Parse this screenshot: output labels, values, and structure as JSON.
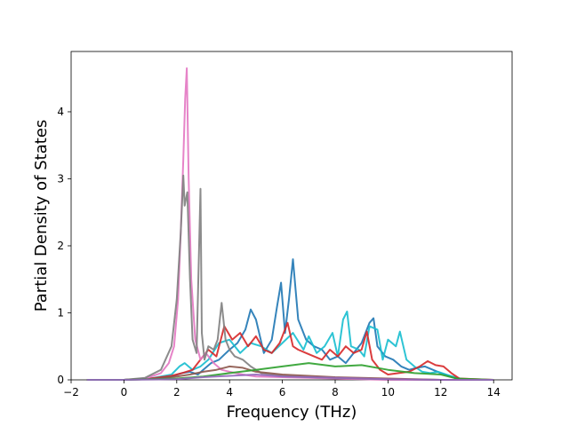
{
  "chart_data": {
    "type": "line",
    "title": "",
    "xlabel": "Frequency (THz)",
    "ylabel": "Partial Density of States",
    "xlim": [
      -2.0,
      14.7
    ],
    "ylim": [
      0,
      4.9
    ],
    "xticks": [
      -2,
      0,
      2,
      4,
      6,
      8,
      10,
      12,
      14
    ],
    "yticks": [
      0,
      1,
      2,
      3,
      4
    ],
    "grid": false,
    "legend": "none",
    "series": [
      {
        "color": "#1f77b4",
        "x": [
          -1.4,
          0.0,
          1.0,
          1.8,
          2.2,
          2.5,
          2.8,
          3.0,
          3.3,
          3.6,
          4.0,
          4.3,
          4.6,
          4.8,
          5.0,
          5.3,
          5.6,
          5.8,
          5.95,
          6.1,
          6.25,
          6.4,
          6.6,
          6.9,
          7.2,
          7.5,
          7.8,
          8.1,
          8.4,
          8.7,
          9.0,
          9.3,
          9.45,
          9.6,
          9.9,
          10.2,
          10.5,
          10.8,
          11.1,
          11.4,
          11.7,
          12.0,
          12.3,
          12.6,
          13.0,
          14.0
        ],
        "y": [
          0,
          0,
          0.02,
          0.05,
          0.1,
          0.12,
          0.08,
          0.15,
          0.25,
          0.3,
          0.45,
          0.55,
          0.75,
          1.05,
          0.9,
          0.4,
          0.6,
          1.1,
          1.45,
          0.7,
          1.2,
          1.8,
          0.9,
          0.6,
          0.5,
          0.45,
          0.3,
          0.35,
          0.25,
          0.4,
          0.55,
          0.85,
          0.92,
          0.5,
          0.35,
          0.3,
          0.2,
          0.15,
          0.18,
          0.2,
          0.15,
          0.1,
          0.06,
          0.02,
          0,
          0
        ]
      },
      {
        "color": "#17becf",
        "x": [
          -1.4,
          0.0,
          1.0,
          1.8,
          2.1,
          2.3,
          2.6,
          2.9,
          3.2,
          3.6,
          4.0,
          4.4,
          4.8,
          5.2,
          5.6,
          6.0,
          6.4,
          6.8,
          7.0,
          7.3,
          7.6,
          7.9,
          8.1,
          8.3,
          8.45,
          8.6,
          8.9,
          9.1,
          9.3,
          9.6,
          9.8,
          10.0,
          10.3,
          10.45,
          10.7,
          11.0,
          11.3,
          11.6,
          11.9,
          12.2,
          12.6,
          13.0,
          14.0
        ],
        "y": [
          0,
          0,
          0.02,
          0.08,
          0.2,
          0.25,
          0.15,
          0.2,
          0.3,
          0.55,
          0.6,
          0.4,
          0.55,
          0.5,
          0.4,
          0.55,
          0.7,
          0.45,
          0.65,
          0.4,
          0.5,
          0.7,
          0.35,
          0.9,
          1.02,
          0.5,
          0.45,
          0.35,
          0.8,
          0.75,
          0.3,
          0.6,
          0.5,
          0.72,
          0.3,
          0.2,
          0.12,
          0.1,
          0.12,
          0.08,
          0.03,
          0,
          0
        ]
      },
      {
        "color": "#d62728",
        "x": [
          -1.4,
          0.0,
          1.0,
          1.8,
          2.2,
          2.6,
          2.9,
          3.2,
          3.5,
          3.8,
          4.1,
          4.4,
          4.7,
          5.0,
          5.3,
          5.6,
          5.9,
          6.2,
          6.4,
          6.6,
          6.9,
          7.2,
          7.5,
          7.8,
          8.1,
          8.4,
          8.7,
          9.0,
          9.2,
          9.4,
          9.7,
          10.0,
          10.4,
          10.8,
          11.2,
          11.5,
          11.8,
          12.1,
          12.4,
          12.7,
          14.0
        ],
        "y": [
          0,
          0,
          0.02,
          0.06,
          0.1,
          0.15,
          0.3,
          0.45,
          0.35,
          0.8,
          0.6,
          0.7,
          0.5,
          0.65,
          0.45,
          0.4,
          0.55,
          0.85,
          0.5,
          0.45,
          0.4,
          0.35,
          0.3,
          0.45,
          0.35,
          0.5,
          0.4,
          0.45,
          0.72,
          0.3,
          0.15,
          0.08,
          0.1,
          0.12,
          0.2,
          0.28,
          0.22,
          0.2,
          0.1,
          0.02,
          0
        ]
      },
      {
        "color": "#e377c2",
        "x": [
          -1.4,
          0.0,
          0.8,
          1.4,
          1.7,
          1.9,
          2.05,
          2.15,
          2.25,
          2.32,
          2.38,
          2.45,
          2.55,
          2.7,
          2.9,
          3.1,
          3.4,
          3.7,
          4.0,
          4.5,
          5.0,
          6.0,
          7.0,
          8.0,
          9.0,
          10.0,
          12.0,
          14.0
        ],
        "y": [
          0,
          0,
          0.02,
          0.1,
          0.25,
          0.5,
          1.2,
          2.2,
          3.3,
          4.2,
          4.65,
          3.0,
          1.5,
          0.6,
          0.3,
          0.4,
          0.25,
          0.15,
          0.12,
          0.08,
          0.05,
          0.04,
          0.03,
          0.02,
          0.01,
          0.0,
          0,
          0
        ]
      },
      {
        "color": "#7f7f7f",
        "x": [
          -1.4,
          0.0,
          0.8,
          1.4,
          1.8,
          2.0,
          2.15,
          2.25,
          2.3,
          2.4,
          2.5,
          2.6,
          2.75,
          2.9,
          2.95,
          3.05,
          3.2,
          3.4,
          3.55,
          3.7,
          3.85,
          4.0,
          4.2,
          4.5,
          4.8,
          5.2,
          5.6,
          6.0,
          6.5,
          7.0,
          8.0,
          9.0,
          10.0,
          12.0,
          14.0
        ],
        "y": [
          0,
          0,
          0.03,
          0.15,
          0.5,
          1.2,
          2.2,
          3.05,
          2.6,
          2.8,
          1.5,
          0.6,
          0.4,
          2.85,
          0.7,
          0.3,
          0.5,
          0.45,
          0.6,
          1.15,
          0.6,
          0.45,
          0.35,
          0.3,
          0.2,
          0.1,
          0.08,
          0.06,
          0.05,
          0.04,
          0.03,
          0.02,
          0.01,
          0,
          0
        ]
      },
      {
        "color": "#8c564b",
        "x": [
          -1.4,
          0.0,
          1.0,
          2.0,
          2.5,
          3.0,
          3.5,
          4.0,
          4.5,
          5.0,
          5.5,
          6.0,
          7.0,
          8.0,
          9.0,
          10.0,
          12.0,
          14.0
        ],
        "y": [
          0,
          0,
          0.01,
          0.05,
          0.08,
          0.12,
          0.15,
          0.2,
          0.18,
          0.12,
          0.1,
          0.08,
          0.06,
          0.04,
          0.03,
          0.02,
          0,
          0
        ]
      },
      {
        "color": "#2ca02c",
        "x": [
          -1.4,
          0.0,
          2.0,
          3.0,
          4.0,
          5.0,
          6.0,
          7.0,
          8.0,
          9.0,
          10.0,
          11.0,
          12.0,
          12.6,
          14.0
        ],
        "y": [
          0,
          0,
          0.02,
          0.05,
          0.1,
          0.15,
          0.2,
          0.25,
          0.2,
          0.22,
          0.15,
          0.1,
          0.08,
          0.02,
          0
        ]
      },
      {
        "color": "#9467bd",
        "x": [
          -1.4,
          0.0,
          2.0,
          3.0,
          4.0,
          5.0,
          6.0,
          7.0,
          8.0,
          9.0,
          10.0,
          12.0,
          14.0
        ],
        "y": [
          0,
          0,
          0.01,
          0.04,
          0.06,
          0.08,
          0.05,
          0.04,
          0.03,
          0.02,
          0.01,
          0,
          0
        ]
      }
    ]
  }
}
